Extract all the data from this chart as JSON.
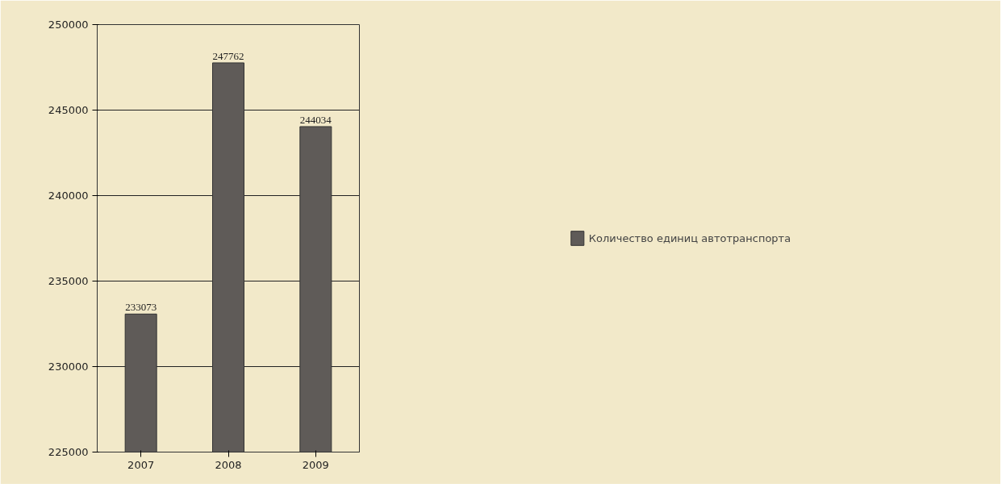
{
  "chart_data": {
    "type": "bar",
    "categories": [
      "2007",
      "2008",
      "2009"
    ],
    "series": [
      {
        "name": "Количество единиц автотранспорта",
        "color": "#5f5b58",
        "values": [
          233073,
          247762,
          244034
        ]
      }
    ],
    "ylim": [
      225000,
      250000
    ],
    "yticks": [
      225000,
      230000,
      235000,
      240000,
      245000,
      250000
    ],
    "grid": "y",
    "legend": "right",
    "data_labels": true
  }
}
